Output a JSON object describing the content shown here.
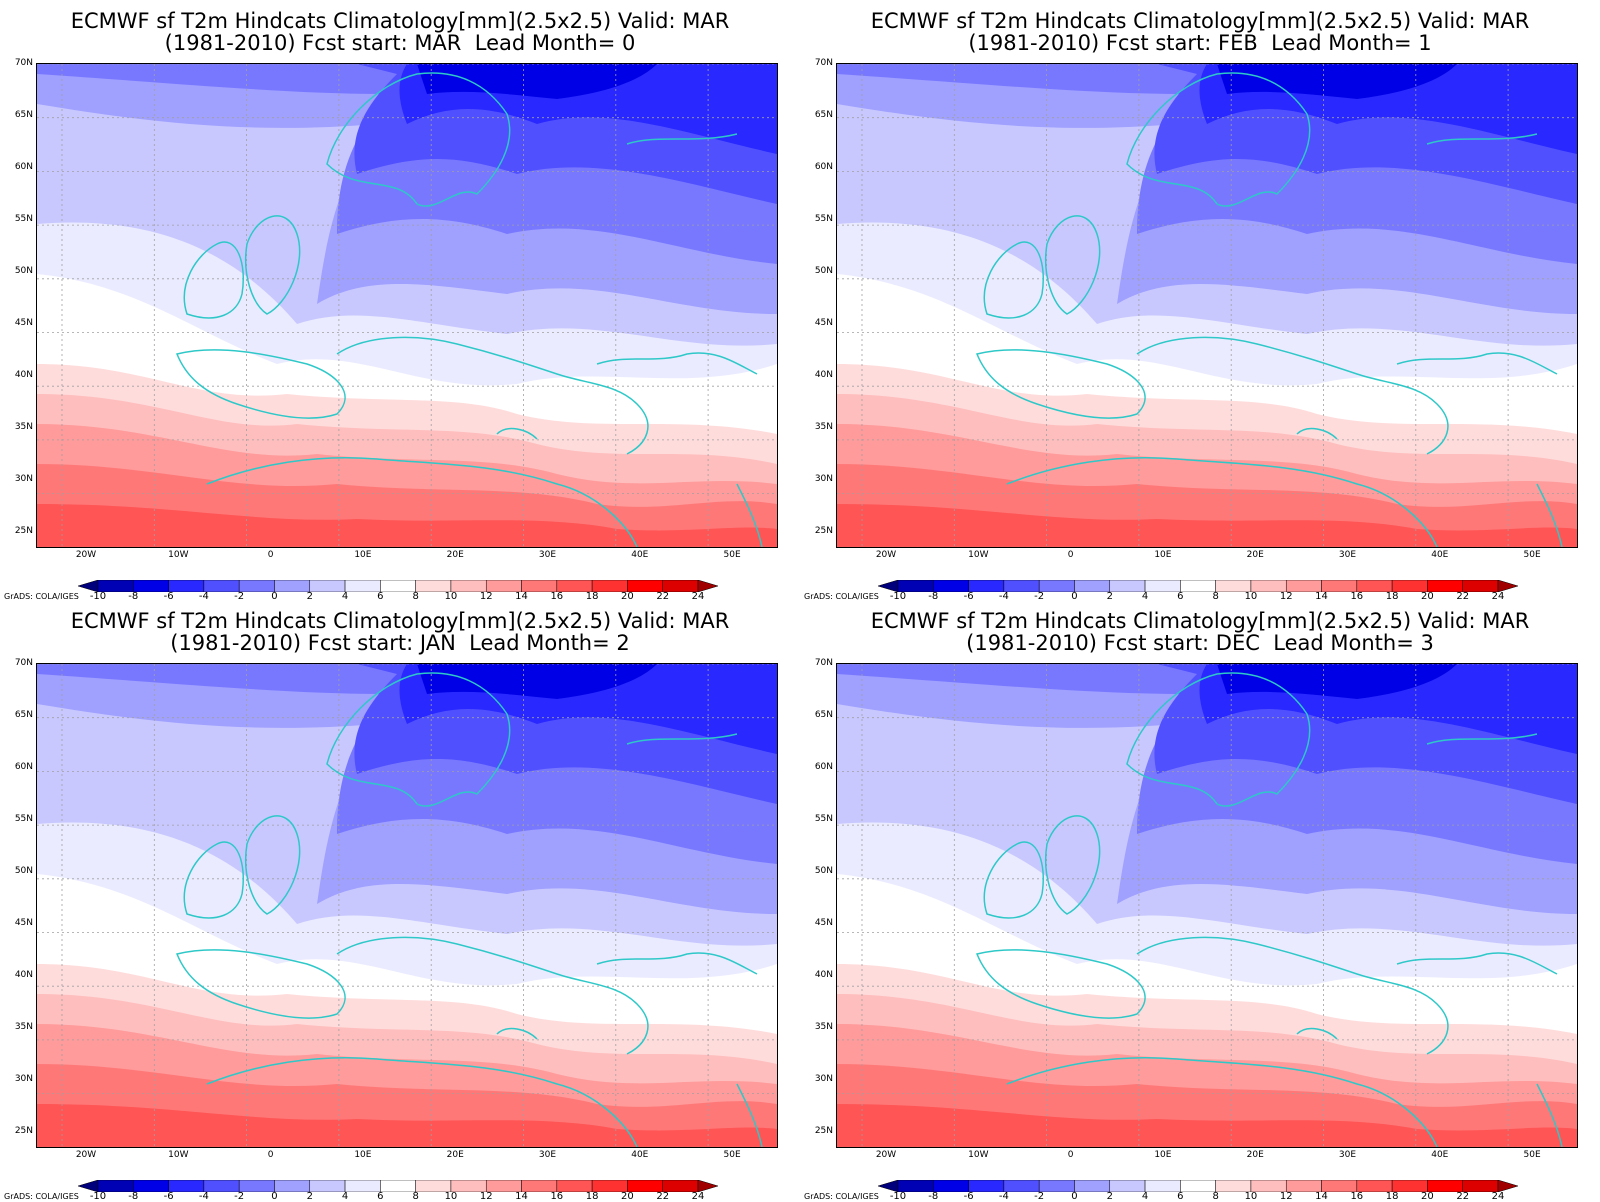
{
  "credit": "GrADS: COLA/IGES",
  "panels": [
    {
      "title1": "ECMWF sf T2m Hindcats Climatology[mm](2.5x2.5) Valid: MAR",
      "title2": "(1981-2010) Fcst start: MAR  Lead Month= 0"
    },
    {
      "title1": "ECMWF sf T2m Hindcats Climatology[mm](2.5x2.5) Valid: MAR",
      "title2": "(1981-2010) Fcst start: FEB  Lead Month= 1"
    },
    {
      "title1": "ECMWF sf T2m Hindcats Climatology[mm](2.5x2.5) Valid: MAR",
      "title2": "(1981-2010) Fcst start: JAN  Lead Month= 2"
    },
    {
      "title1": "ECMWF sf T2m Hindcats Climatology[mm](2.5x2.5) Valid: MAR",
      "title2": "(1981-2010) Fcst start: DEC  Lead Month= 3"
    }
  ],
  "lat_labels": [
    "70N",
    "65N",
    "60N",
    "55N",
    "50N",
    "45N",
    "40N",
    "35N",
    "30N",
    "25N"
  ],
  "lon_labels": [
    "20W",
    "10W",
    "0",
    "10E",
    "20E",
    "30E",
    "40E",
    "50E"
  ],
  "colorbar": {
    "labels": [
      "-10",
      "-8",
      "-6",
      "-4",
      "-2",
      "0",
      "2",
      "4",
      "6",
      "8",
      "10",
      "12",
      "14",
      "16",
      "18",
      "20",
      "22",
      "24"
    ],
    "colors": [
      "#00007d",
      "#0000b4",
      "#0000e6",
      "#2828ff",
      "#5050ff",
      "#7878ff",
      "#a0a0ff",
      "#c8c8ff",
      "#ebebff",
      "#ffffff",
      "#ffdcdc",
      "#ffbebe",
      "#ff9b9b",
      "#ff7878",
      "#ff5555",
      "#ff3232",
      "#ff0000",
      "#dc0000",
      "#a00000"
    ]
  },
  "colors": {
    "coast": "#2ec8c8",
    "grid": "#a0a0a0"
  }
}
